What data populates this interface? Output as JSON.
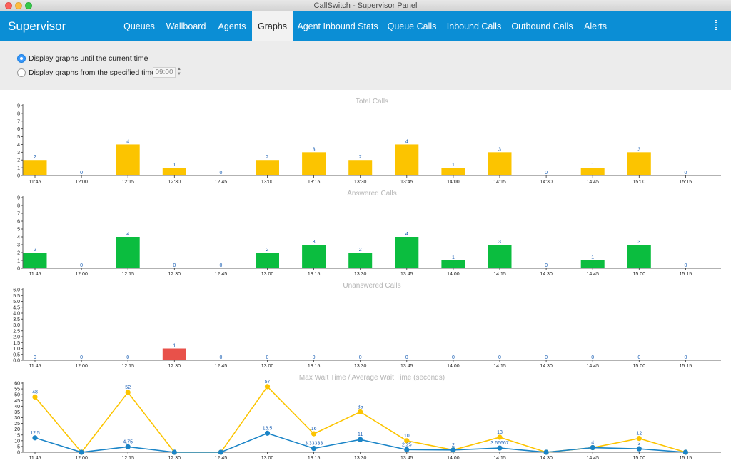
{
  "window": {
    "title": "CallSwitch - Supervisor Panel"
  },
  "brand": "Supervisor",
  "nav": {
    "tabs": [
      {
        "label": "Queues",
        "active": false
      },
      {
        "label": "Wallboard",
        "active": false
      },
      {
        "label": "Agents",
        "active": false
      },
      {
        "label": "Graphs",
        "active": true
      },
      {
        "label": "Agent Inbound Stats",
        "active": false
      },
      {
        "label": "Queue Calls",
        "active": false
      },
      {
        "label": "Inbound Calls",
        "active": false
      },
      {
        "label": "Outbound Calls",
        "active": false
      },
      {
        "label": "Alerts",
        "active": false
      }
    ],
    "menu_icon": "vertical-ellipsis-icon"
  },
  "options": {
    "current_time_label": "Display graphs until the current time",
    "current_time_selected": true,
    "specified_time_label": "Display graphs from the specified time:",
    "specified_time_selected": false,
    "time_value": "09:00"
  },
  "colors": {
    "accent": "#0b8ed5",
    "total": "#fcc400",
    "answered": "#0bbd3f",
    "unanswered": "#e8514a",
    "max_wait": "#fcc400",
    "avg_wait": "#1a84c7"
  },
  "chart_data": [
    {
      "type": "bar",
      "title": "Total Calls",
      "categories": [
        "11:45",
        "12:00",
        "12:15",
        "12:30",
        "12:45",
        "13:00",
        "13:15",
        "13:30",
        "13:45",
        "14:00",
        "14:15",
        "14:30",
        "14:45",
        "15:00",
        "15:15"
      ],
      "values": [
        2,
        0,
        4,
        1,
        0,
        2,
        3,
        2,
        4,
        1,
        3,
        0,
        1,
        3,
        0
      ],
      "yticks": [
        "0",
        "1",
        "2",
        "3",
        "4",
        "5",
        "6",
        "7",
        "8",
        "9"
      ],
      "ylim": [
        0,
        9
      ],
      "color": "#fcc400"
    },
    {
      "type": "bar",
      "title": "Answered Calls",
      "categories": [
        "11:45",
        "12:00",
        "12:15",
        "12:30",
        "12:45",
        "13:00",
        "13:15",
        "13:30",
        "13:45",
        "14:00",
        "14:15",
        "14:30",
        "14:45",
        "15:00",
        "15:15"
      ],
      "values": [
        2,
        0,
        4,
        0,
        0,
        2,
        3,
        2,
        4,
        1,
        3,
        0,
        1,
        3,
        0
      ],
      "yticks": [
        "0",
        "1",
        "2",
        "3",
        "4",
        "5",
        "6",
        "7",
        "8",
        "9"
      ],
      "ylim": [
        0,
        9
      ],
      "color": "#0bbd3f"
    },
    {
      "type": "bar",
      "title": "Unanswered Calls",
      "categories": [
        "11:45",
        "12:00",
        "12:15",
        "12:30",
        "12:45",
        "13:00",
        "13:15",
        "13:30",
        "13:45",
        "14:00",
        "14:15",
        "14:30",
        "14:45",
        "15:00",
        "15:15"
      ],
      "values": [
        0,
        0,
        0,
        1,
        0,
        0,
        0,
        0,
        0,
        0,
        0,
        0,
        0,
        0,
        0
      ],
      "yticks": [
        "0.0",
        "0.5",
        "1.0",
        "1.5",
        "2.0",
        "2.5",
        "3.0",
        "3.5",
        "4.0",
        "4.5",
        "5.0",
        "5.5",
        "6.0"
      ],
      "ylim": [
        0,
        6
      ],
      "color": "#e8514a"
    },
    {
      "type": "line",
      "title": "Max Wait Time / Average Wait Time (seconds)",
      "categories": [
        "11:45",
        "12:00",
        "12:15",
        "12:30",
        "12:45",
        "13:00",
        "13:15",
        "13:30",
        "13:45",
        "14:00",
        "14:15",
        "14:30",
        "14:45",
        "15:00",
        "15:15"
      ],
      "yticks": [
        "0",
        "5",
        "10",
        "15",
        "20",
        "25",
        "30",
        "35",
        "40",
        "45",
        "50",
        "55",
        "60"
      ],
      "ylim": [
        0,
        60
      ],
      "series": [
        {
          "color": "#fcc400",
          "values": [
            48,
            0,
            52,
            0,
            0,
            57,
            16,
            35,
            10,
            2,
            13,
            0,
            4,
            12,
            0
          ],
          "labels": [
            "48",
            "",
            "52",
            "",
            "",
            "57",
            "16",
            "35",
            "10",
            "2",
            "13",
            "",
            "4",
            "12",
            ""
          ]
        },
        {
          "color": "#1a84c7",
          "values": [
            12.5,
            0,
            4.75,
            0,
            0,
            16.5,
            3.33333,
            11,
            2.25,
            2,
            3.66667,
            0,
            4,
            3,
            0
          ],
          "labels": [
            "12.5",
            "",
            "4.75",
            "",
            "",
            "16.5",
            "3.33333",
            "11",
            "2.25",
            "",
            "3.66667",
            "",
            "",
            "3",
            ""
          ]
        }
      ]
    }
  ]
}
